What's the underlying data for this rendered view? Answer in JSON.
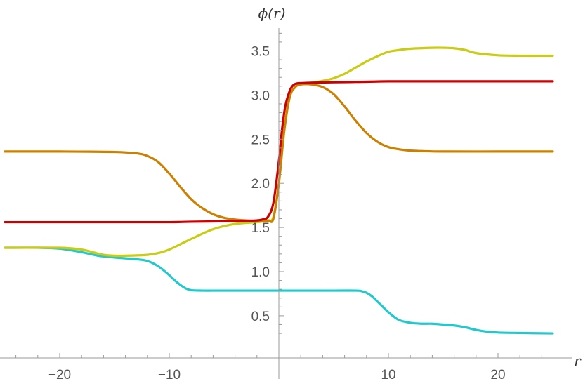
{
  "chart_data": {
    "type": "line",
    "title": "",
    "xlabel": "r",
    "ylabel": "ϕ(r)",
    "xlim": [
      -25,
      25
    ],
    "ylim": [
      0.2,
      3.75
    ],
    "x_ticks": [
      -20,
      -10,
      10,
      20
    ],
    "x_tick_labels": [
      "−20",
      "−10",
      "10",
      "20"
    ],
    "y_ticks": [
      0.5,
      1.0,
      1.5,
      2.0,
      2.5,
      3.0,
      3.5
    ],
    "y_tick_labels": [
      "0.5",
      "1.0",
      "1.5",
      "2.0",
      "2.5",
      "3.0",
      "3.5"
    ],
    "grid": false,
    "series": [
      {
        "name": "cyan",
        "color": "#22c8cc",
        "x": [
          -25,
          -22,
          -20,
          -18,
          -16.5,
          -15,
          -13,
          -12,
          -11,
          -10,
          -9.5,
          -9,
          -8.5,
          -8,
          -7,
          -5,
          0,
          5,
          7,
          7.5,
          8,
          8.5,
          9,
          9.5,
          10,
          10.5,
          11,
          12,
          13,
          14,
          15,
          16,
          17,
          18,
          19,
          20,
          22,
          25
        ],
        "y": [
          1.27,
          1.27,
          1.26,
          1.22,
          1.18,
          1.16,
          1.14,
          1.12,
          1.06,
          0.96,
          0.9,
          0.85,
          0.81,
          0.79,
          0.785,
          0.785,
          0.785,
          0.785,
          0.785,
          0.78,
          0.76,
          0.72,
          0.66,
          0.6,
          0.54,
          0.49,
          0.45,
          0.42,
          0.41,
          0.41,
          0.4,
          0.39,
          0.37,
          0.34,
          0.32,
          0.31,
          0.305,
          0.3
        ]
      },
      {
        "name": "yellow",
        "color": "#c9cc12",
        "x": [
          -25,
          -20,
          -18,
          -17,
          -16,
          -15,
          -14,
          -12,
          -11,
          -10,
          -8,
          -6,
          -4,
          -2,
          -1,
          -0.5,
          0,
          0.5,
          1,
          1.5,
          2,
          3,
          4,
          5,
          6,
          7,
          8,
          9,
          10,
          11,
          12,
          14,
          15,
          16,
          17,
          18,
          20,
          22,
          25
        ],
        "y": [
          1.27,
          1.27,
          1.25,
          1.22,
          1.19,
          1.18,
          1.18,
          1.19,
          1.21,
          1.25,
          1.37,
          1.48,
          1.54,
          1.56,
          1.58,
          1.62,
          2.0,
          2.62,
          2.98,
          3.09,
          3.13,
          3.14,
          3.16,
          3.19,
          3.24,
          3.31,
          3.38,
          3.44,
          3.49,
          3.51,
          3.525,
          3.535,
          3.535,
          3.53,
          3.51,
          3.475,
          3.45,
          3.445,
          3.445
        ]
      },
      {
        "name": "orange",
        "color": "#cc8000",
        "x": [
          -25,
          -20,
          -15,
          -13,
          -12,
          -11,
          -10,
          -9,
          -8,
          -7,
          -6,
          -5,
          -4,
          -3,
          -2,
          -1,
          -0.5,
          0,
          0.5,
          1,
          1.5,
          2,
          3,
          4,
          5,
          6,
          7,
          8,
          9,
          10,
          11,
          12,
          13,
          15,
          20,
          25
        ],
        "y": [
          2.36,
          2.36,
          2.355,
          2.34,
          2.31,
          2.24,
          2.11,
          1.96,
          1.82,
          1.72,
          1.65,
          1.61,
          1.59,
          1.58,
          1.575,
          1.575,
          1.6,
          2.0,
          2.6,
          2.98,
          3.09,
          3.12,
          3.12,
          3.09,
          3.01,
          2.87,
          2.71,
          2.57,
          2.47,
          2.41,
          2.385,
          2.37,
          2.365,
          2.36,
          2.36,
          2.36
        ]
      },
      {
        "name": "red",
        "color": "#cc0000",
        "x": [
          -25,
          -15,
          -10,
          -8,
          -5,
          -3,
          -2,
          -1.5,
          -1,
          -0.5,
          0,
          0.3,
          0.6,
          1,
          1.3,
          1.6,
          2,
          3,
          5,
          8,
          10,
          15,
          20,
          25
        ],
        "y": [
          1.56,
          1.56,
          1.56,
          1.565,
          1.57,
          1.575,
          1.58,
          1.59,
          1.62,
          1.78,
          2.25,
          2.62,
          2.88,
          3.05,
          3.11,
          3.13,
          3.135,
          3.14,
          3.145,
          3.15,
          3.155,
          3.155,
          3.155,
          3.155
        ]
      }
    ]
  }
}
